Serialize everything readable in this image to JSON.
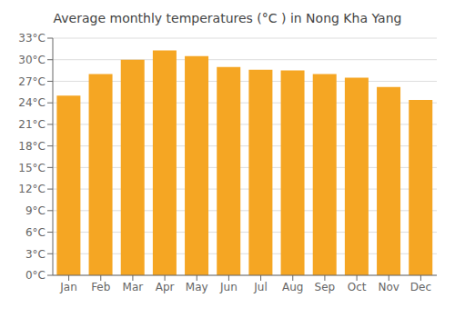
{
  "chart_data": {
    "type": "bar",
    "title": "Average monthly temperatures (°C ) in Nong Kha Yang",
    "categories": [
      "Jan",
      "Feb",
      "Mar",
      "Apr",
      "May",
      "Jun",
      "Jul",
      "Aug",
      "Sep",
      "Oct",
      "Nov",
      "Dec"
    ],
    "values": [
      25.0,
      28.0,
      30.0,
      31.3,
      30.5,
      29.0,
      28.6,
      28.5,
      28.0,
      27.5,
      26.2,
      24.4
    ],
    "color": "#F5A623",
    "ylim": [
      0,
      33
    ],
    "yticks": [
      {
        "value": 0,
        "label": "0°C"
      },
      {
        "value": 3,
        "label": "3°C"
      },
      {
        "value": 6,
        "label": "6°C"
      },
      {
        "value": 9,
        "label": "9°C"
      },
      {
        "value": 12,
        "label": "12°C"
      },
      {
        "value": 15,
        "label": "15°C"
      },
      {
        "value": 18,
        "label": "18°C"
      },
      {
        "value": 21,
        "label": "21°C"
      },
      {
        "value": 24,
        "label": "24°C"
      },
      {
        "value": 27,
        "label": "27°C"
      },
      {
        "value": 30,
        "label": "30°C"
      },
      {
        "value": 33,
        "label": "33°C"
      }
    ],
    "grid": true
  }
}
